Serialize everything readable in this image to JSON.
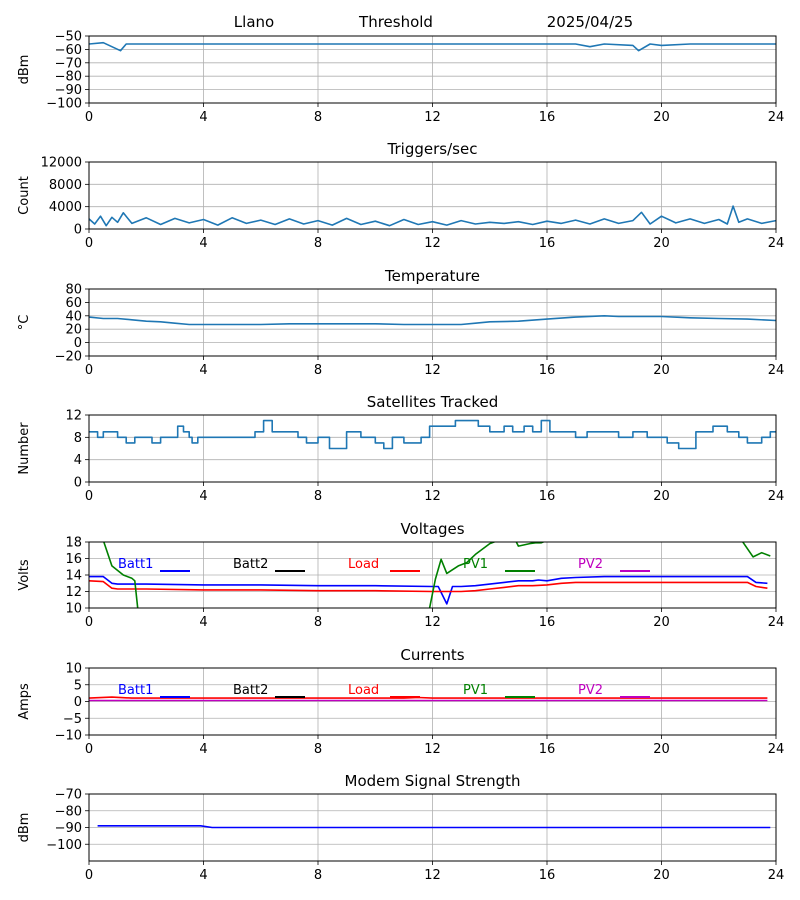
{
  "header": {
    "station": "Llano",
    "threshold_label": "Threshold",
    "date": "2025/04/25"
  },
  "colors": {
    "default_series": "#1f77b4",
    "grid": "#b0b0b0",
    "batt1": "#0000ff",
    "batt2": "#000000",
    "load": "#ff0000",
    "pv1": "#008000",
    "pv2": "#bf00bf"
  },
  "chart_data": [
    {
      "type": "line",
      "title": "",
      "ylabel": "dBm",
      "xlabel": "",
      "xlim": [
        0,
        24
      ],
      "ylim": [
        -100,
        -50
      ],
      "xticks": [
        "0",
        "4",
        "8",
        "12",
        "16",
        "20",
        "24"
      ],
      "yticks": [
        "−50",
        "−60",
        "−70",
        "−80",
        "−90",
        "−100"
      ],
      "ytick_values": [
        -50,
        -60,
        -70,
        -80,
        -90,
        -100
      ],
      "grid": true,
      "series": [
        {
          "color_key": "default_series",
          "x": [
            0,
            0.5,
            0.8,
            1.1,
            1.3,
            2,
            3,
            4,
            5,
            6,
            7,
            8,
            9,
            10,
            11,
            12,
            13,
            14,
            15,
            16,
            17,
            17.5,
            18,
            19,
            19.2,
            19.6,
            20,
            21,
            22,
            23,
            24
          ],
          "y": [
            -56,
            -55,
            -58,
            -61,
            -56,
            -56,
            -56,
            -56,
            -56,
            -56,
            -56,
            -56,
            -56,
            -56,
            -56,
            -56,
            -56,
            -56,
            -56,
            -56,
            -56,
            -58,
            -56,
            -57,
            -61,
            -56,
            -57,
            -56,
            -56,
            -56,
            -56
          ]
        }
      ]
    },
    {
      "type": "line",
      "title": "Triggers/sec",
      "ylabel": "Count",
      "xlabel": "",
      "xlim": [
        0,
        24
      ],
      "ylim": [
        0,
        12000
      ],
      "xticks": [
        "0",
        "4",
        "8",
        "12",
        "16",
        "20",
        "24"
      ],
      "yticks": [
        "0",
        "4000",
        "8000",
        "12000"
      ],
      "ytick_values": [
        0,
        4000,
        8000,
        12000
      ],
      "grid": true,
      "series": [
        {
          "color_key": "default_series",
          "x": [
            0,
            0.2,
            0.4,
            0.6,
            0.8,
            1,
            1.2,
            1.5,
            2,
            2.5,
            3,
            3.5,
            4,
            4.5,
            5,
            5.5,
            6,
            6.5,
            7,
            7.5,
            8,
            8.5,
            9,
            9.5,
            10,
            10.5,
            11,
            11.5,
            12,
            12.5,
            13,
            13.5,
            14,
            14.5,
            15,
            15.5,
            16,
            16.5,
            17,
            17.5,
            18,
            18.5,
            19,
            19.3,
            19.6,
            20,
            20.5,
            21,
            21.5,
            22,
            22.3,
            22.5,
            22.7,
            23,
            23.5,
            24
          ],
          "y": [
            1800,
            900,
            2300,
            600,
            2100,
            1200,
            2900,
            1000,
            2000,
            800,
            1900,
            1100,
            1700,
            700,
            2000,
            1000,
            1600,
            800,
            1800,
            900,
            1500,
            700,
            1900,
            800,
            1400,
            600,
            1700,
            800,
            1300,
            700,
            1500,
            900,
            1200,
            1000,
            1300,
            800,
            1400,
            1000,
            1600,
            900,
            1800,
            1000,
            1500,
            3000,
            900,
            2300,
            1100,
            1800,
            1000,
            1700,
            900,
            4100,
            1200,
            1800,
            1000,
            1500
          ]
        }
      ]
    },
    {
      "type": "line",
      "title": "Temperature",
      "ylabel": "°C",
      "xlabel": "",
      "xlim": [
        0,
        24
      ],
      "ylim": [
        -20,
        80
      ],
      "xticks": [
        "0",
        "4",
        "8",
        "12",
        "16",
        "20",
        "24"
      ],
      "yticks": [
        "−20",
        "0",
        "20",
        "40",
        "60",
        "80"
      ],
      "ytick_values": [
        -20,
        0,
        20,
        40,
        60,
        80
      ],
      "grid": true,
      "series": [
        {
          "color_key": "default_series",
          "x": [
            0,
            0.5,
            1,
            1.5,
            2,
            2.5,
            3,
            3.5,
            4,
            4.5,
            5,
            6,
            7,
            8,
            9,
            10,
            11,
            12,
            13,
            13.5,
            14,
            15,
            16,
            17,
            18,
            18.5,
            19,
            20,
            21,
            22,
            23,
            24
          ],
          "y": [
            38,
            36,
            36,
            34,
            32,
            31,
            29,
            27,
            27,
            27,
            27,
            27,
            28,
            28,
            28,
            28,
            27,
            27,
            27,
            29,
            31,
            32,
            35,
            38,
            40,
            39,
            39,
            39,
            37,
            36,
            35,
            33
          ]
        }
      ]
    },
    {
      "type": "line",
      "title": "Satellites Tracked",
      "ylabel": "Number",
      "xlabel": "",
      "xlim": [
        0,
        24
      ],
      "ylim": [
        0,
        12
      ],
      "xticks": [
        "0",
        "4",
        "8",
        "12",
        "16",
        "20",
        "24"
      ],
      "yticks": [
        "0",
        "4",
        "8",
        "12"
      ],
      "ytick_values": [
        0,
        4,
        8,
        12
      ],
      "grid": true,
      "step": true,
      "series": [
        {
          "color_key": "default_series",
          "x": [
            0,
            0.3,
            0.5,
            1,
            1.3,
            1.6,
            1.9,
            2.2,
            2.5,
            3.1,
            3.3,
            3.5,
            3.6,
            3.8,
            4.2,
            4.8,
            5.8,
            6.1,
            6.4,
            7.3,
            7.6,
            8,
            8.4,
            9,
            9.5,
            10,
            10.3,
            10.6,
            11,
            11.6,
            11.9,
            12.4,
            12.8,
            13.6,
            14,
            14.5,
            14.8,
            15.2,
            15.5,
            15.8,
            16.1,
            16.5,
            17,
            17.4,
            18,
            18.5,
            19,
            19.5,
            20.2,
            20.6,
            21.2,
            21.8,
            22.3,
            22.7,
            23,
            23.5,
            23.8,
            24
          ],
          "y": [
            9,
            8,
            9,
            8,
            7,
            8,
            8,
            7,
            8,
            10,
            9,
            8,
            7,
            8,
            8,
            8,
            9,
            11,
            9,
            8,
            7,
            8,
            6,
            9,
            8,
            7,
            6,
            8,
            7,
            8,
            10,
            10,
            11,
            10,
            9,
            10,
            9,
            10,
            9,
            11,
            9,
            9,
            8,
            9,
            9,
            8,
            9,
            8,
            7,
            6,
            9,
            10,
            9,
            8,
            7,
            8,
            9,
            9
          ]
        }
      ]
    },
    {
      "type": "line",
      "title": "Voltages",
      "ylabel": "Volts",
      "xlabel": "",
      "xlim": [
        0,
        24
      ],
      "ylim": [
        10,
        18
      ],
      "xticks": [
        "0",
        "4",
        "8",
        "12",
        "16",
        "20",
        "24"
      ],
      "yticks": [
        "10",
        "12",
        "14",
        "16",
        "18"
      ],
      "ytick_values": [
        10,
        12,
        14,
        16,
        18
      ],
      "grid": true,
      "legend": [
        "Batt1",
        "Batt2",
        "Load",
        "PV1",
        "PV2"
      ],
      "series": [
        {
          "name": "Batt1",
          "color_key": "batt1",
          "x": [
            0,
            0.5,
            0.8,
            1,
            2,
            4,
            6,
            8,
            10,
            12,
            12.2,
            12.5,
            12.7,
            13,
            13.5,
            14,
            14.5,
            15,
            15.5,
            15.7,
            16,
            16.5,
            17,
            18,
            20,
            22,
            23,
            23.3,
            23.7
          ],
          "y": [
            13.8,
            13.8,
            13,
            12.9,
            12.9,
            12.8,
            12.8,
            12.7,
            12.7,
            12.6,
            12.6,
            10.5,
            12.6,
            12.6,
            12.7,
            12.9,
            13.1,
            13.3,
            13.3,
            13.4,
            13.3,
            13.6,
            13.7,
            13.8,
            13.8,
            13.8,
            13.8,
            13.1,
            13.0
          ]
        },
        {
          "name": "Load",
          "color_key": "load",
          "x": [
            0,
            0.5,
            0.8,
            1,
            2,
            4,
            6,
            8,
            10,
            12,
            13,
            13.5,
            14,
            14.5,
            15,
            15.5,
            16,
            16.5,
            17,
            18,
            20,
            22,
            23,
            23.3,
            23.7
          ],
          "y": [
            13.3,
            13.2,
            12.4,
            12.3,
            12.3,
            12.2,
            12.2,
            12.1,
            12.1,
            12.0,
            12.0,
            12.1,
            12.3,
            12.5,
            12.7,
            12.7,
            12.8,
            13.0,
            13.1,
            13.1,
            13.1,
            13.1,
            13.1,
            12.6,
            12.4
          ]
        },
        {
          "name": "PV1 (segment 1)",
          "color_key": "pv1",
          "x": [
            0.5,
            0.8,
            1.2,
            1.5,
            1.6,
            1.7
          ],
          "y": [
            18.2,
            15.1,
            14,
            13.6,
            13.3,
            10
          ]
        },
        {
          "name": "PV1 (segment 2)",
          "color_key": "pv1",
          "x": [
            11.9,
            12.1,
            12.3,
            12.5,
            12.9,
            13.2,
            13.5,
            14,
            14.3
          ],
          "y": [
            10,
            13.5,
            15.9,
            14.2,
            15.1,
            15.5,
            16.5,
            17.8,
            18.2
          ]
        },
        {
          "name": "PV1 (segment 3)",
          "color_key": "pv1",
          "x": [
            14.9,
            15,
            15.4,
            15.6,
            15.8,
            16
          ],
          "y": [
            18.2,
            17.5,
            17.8,
            17.9,
            17.9,
            18.2
          ]
        },
        {
          "name": "PV1 (segment 4)",
          "color_key": "pv1",
          "x": [
            22.8,
            23.2,
            23.5,
            23.8
          ],
          "y": [
            18.2,
            16.2,
            16.7,
            16.3
          ]
        }
      ]
    },
    {
      "type": "line",
      "title": "Currents",
      "ylabel": "Amps",
      "xlabel": "",
      "xlim": [
        0,
        24
      ],
      "ylim": [
        -10,
        10
      ],
      "xticks": [
        "0",
        "4",
        "8",
        "12",
        "16",
        "20",
        "24"
      ],
      "yticks": [
        "−10",
        "−5",
        "0",
        "5",
        "10"
      ],
      "ytick_values": [
        -10,
        -5,
        0,
        5,
        10
      ],
      "grid": true,
      "legend": [
        "Batt1",
        "Batt2",
        "Load",
        "PV1",
        "PV2"
      ],
      "series": [
        {
          "name": "Load",
          "color_key": "load",
          "x": [
            0,
            0.8,
            1.5,
            4,
            8,
            11,
            11.5,
            12,
            16,
            20,
            23.7
          ],
          "y": [
            1.0,
            1.3,
            1.0,
            1.0,
            1.0,
            1.0,
            1.2,
            1.0,
            1.0,
            1.0,
            1.0
          ]
        },
        {
          "name": "PV2",
          "color_key": "pv2",
          "x": [
            0,
            23.7
          ],
          "y": [
            0.3,
            0.3
          ]
        }
      ]
    },
    {
      "type": "line",
      "title": "Modem Signal Strength",
      "ylabel": "dBm",
      "xlabel": "",
      "xlim": [
        0,
        24
      ],
      "ylim": [
        -110,
        -70
      ],
      "xticks": [
        "0",
        "4",
        "8",
        "12",
        "16",
        "20",
        "24"
      ],
      "yticks": [
        "−70",
        "−80",
        "−90",
        "−100"
      ],
      "ytick_values": [
        -70,
        -80,
        -90,
        -100
      ],
      "grid": true,
      "series": [
        {
          "color_key": "batt1",
          "x": [
            0.3,
            3.9,
            4.3,
            12,
            16,
            20,
            23.8
          ],
          "y": [
            -89,
            -89,
            -90,
            -90,
            -90,
            -90,
            -90
          ]
        }
      ]
    }
  ],
  "legend_colors": {
    "Batt1": "batt1",
    "Batt2": "batt2",
    "Load": "load",
    "PV1": "pv1",
    "PV2": "pv2"
  }
}
